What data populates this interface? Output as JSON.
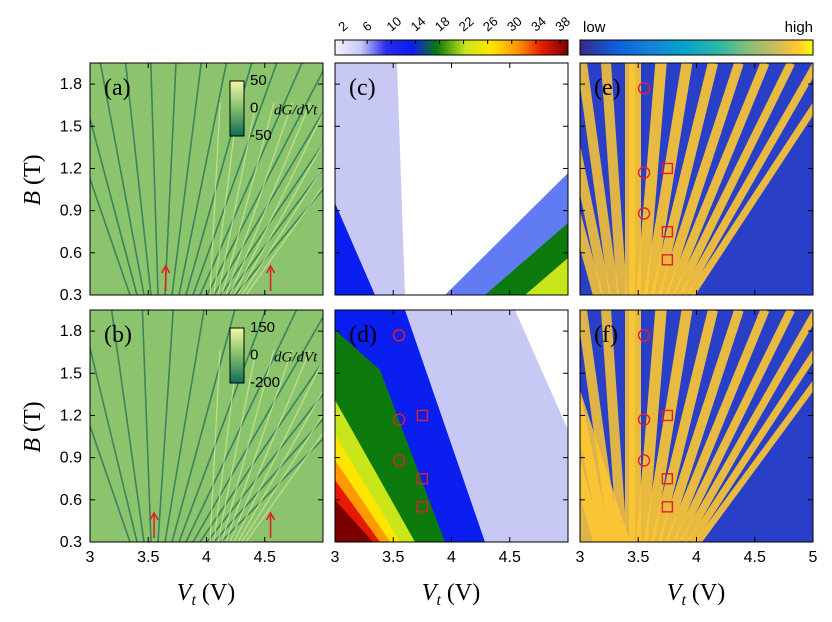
{
  "chart_data": {
    "type": "heatmap",
    "x_range": [
      3,
      5
    ],
    "y_range": [
      0.3,
      1.95
    ],
    "x_ticks": [
      "3",
      "3.5",
      "4",
      "4.5",
      "5"
    ],
    "y_ticks": [
      "0.3",
      "0.6",
      "0.9",
      "1.2",
      "1.5",
      "1.8"
    ],
    "xlabel": {
      "main": "V",
      "sub": "t",
      "unit": "(V)"
    },
    "ylabel": {
      "main": "B",
      "unit": "(T)"
    },
    "panels": [
      {
        "id": "a",
        "label": "(a)",
        "kind": "measured dG/dVt",
        "inset_ticks": [
          "50",
          "0",
          "-50"
        ],
        "inset_label": "dG/dVt",
        "arrows_at_x": [
          3.65,
          4.55
        ]
      },
      {
        "id": "b",
        "label": "(b)",
        "kind": "measured dG/dVt",
        "inset_ticks": [
          "150",
          "0",
          "-200"
        ],
        "inset_label": "dG/dVt",
        "arrows_at_x": [
          3.55,
          4.55
        ]
      },
      {
        "id": "c",
        "label": "(c)",
        "kind": "filling factor map"
      },
      {
        "id": "d",
        "label": "(d)",
        "kind": "filling factor map",
        "circles": [
          [
            3.55,
            1.77
          ],
          [
            3.55,
            1.17
          ],
          [
            3.55,
            0.88
          ]
        ],
        "squares": [
          [
            3.75,
            1.2
          ],
          [
            3.75,
            0.75
          ],
          [
            3.75,
            0.55
          ]
        ]
      },
      {
        "id": "e",
        "label": "(e)",
        "kind": "simulated density of states",
        "circles": [
          [
            3.55,
            1.77
          ],
          [
            3.55,
            1.17
          ],
          [
            3.55,
            0.88
          ]
        ],
        "squares": [
          [
            3.75,
            1.2
          ],
          [
            3.75,
            0.75
          ],
          [
            3.75,
            0.55
          ]
        ]
      },
      {
        "id": "f",
        "label": "(f)",
        "kind": "simulated density of states",
        "circles": [
          [
            3.55,
            1.77
          ],
          [
            3.55,
            1.17
          ],
          [
            3.55,
            0.88
          ]
        ],
        "squares": [
          [
            3.75,
            1.2
          ],
          [
            3.75,
            0.75
          ],
          [
            3.75,
            0.55
          ]
        ]
      }
    ],
    "colorbar_filling": {
      "ticks": [
        "2",
        "6",
        "10",
        "14",
        "18",
        "22",
        "26",
        "30",
        "34",
        "38"
      ]
    },
    "colorbar_dos": {
      "low": "low",
      "high": "high"
    }
  },
  "colors": {
    "marker": "#e0202a",
    "arrow": "#e0202a",
    "parula": [
      "#352a87",
      "#0f5cdd",
      "#1481d6",
      "#06a4ca",
      "#2eb7a4",
      "#87bf77",
      "#d1bb59",
      "#fec832",
      "#f9fb0e"
    ],
    "filling": [
      "#e8e8ff",
      "#c8c8f4",
      "#0a1ef0",
      "#0d7a0d",
      "#c8e61a",
      "#ffe600",
      "#ff9900",
      "#e61a00",
      "#7a0000"
    ],
    "derivative": [
      "#0e6b58",
      "#7fbf6a",
      "#f2f2a0"
    ]
  }
}
